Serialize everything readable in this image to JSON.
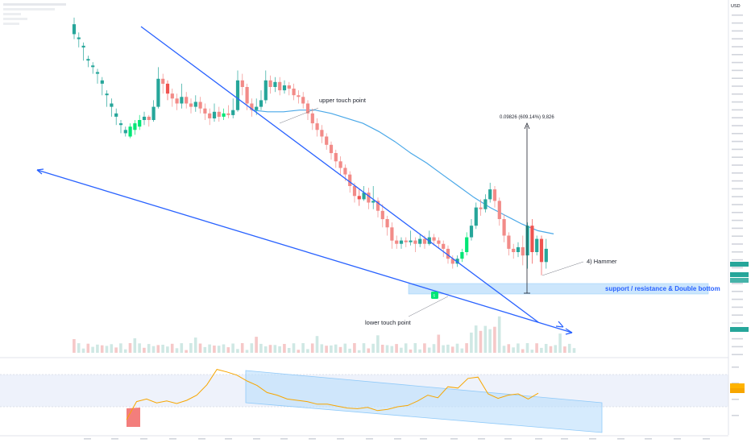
{
  "header": {
    "currency": "USD"
  },
  "annotations": {
    "upper_touch": "upper touch point",
    "lower_touch": "lower touch point",
    "hammer": "4) Hammer",
    "measure": "0.09826 (609.14%) 9,826",
    "support": "support / resistance & Double bottom",
    "marker": "5"
  },
  "colors": {
    "bull": "#26a69a",
    "bull_highlight": "#00e676",
    "bear": "#ef5350",
    "trendline": "#2962ff",
    "ma": "#4aa8e8",
    "rsi": "#f7a600",
    "support_zone": "#bbdefb"
  },
  "chart_data": {
    "type": "candlestick",
    "title": "",
    "series": [
      {
        "name": "",
        "ohlc": [
          [
            0.72,
            0.78,
            0.69,
            0.82
          ],
          [
            0.69,
            0.7,
            0.64,
            0.73
          ],
          [
            0.64,
            0.65,
            0.56,
            0.67
          ],
          [
            0.56,
            0.57,
            0.52,
            0.59
          ],
          [
            0.52,
            0.53,
            0.48,
            0.55
          ],
          [
            0.48,
            0.49,
            0.42,
            0.51
          ],
          [
            0.42,
            0.44,
            0.35,
            0.46
          ],
          [
            0.35,
            0.36,
            0.28,
            0.38
          ],
          [
            0.28,
            0.3,
            0.22,
            0.33
          ],
          [
            0.22,
            0.24,
            0.17,
            0.27
          ],
          [
            0.17,
            0.18,
            0.12,
            0.2
          ],
          [
            0.12,
            0.14,
            0.1,
            0.16
          ],
          [
            0.1,
            0.16,
            0.09,
            0.18
          ],
          [
            0.14,
            0.18,
            0.11,
            0.2
          ],
          [
            0.16,
            0.2,
            0.14,
            0.23
          ],
          [
            0.2,
            0.22,
            0.17,
            0.25
          ],
          [
            0.22,
            0.2,
            0.16,
            0.23
          ],
          [
            0.2,
            0.28,
            0.19,
            0.32
          ],
          [
            0.28,
            0.45,
            0.27,
            0.52
          ],
          [
            0.45,
            0.42,
            0.36,
            0.48
          ],
          [
            0.42,
            0.36,
            0.32,
            0.44
          ],
          [
            0.36,
            0.33,
            0.28,
            0.39
          ],
          [
            0.33,
            0.3,
            0.26,
            0.36
          ],
          [
            0.3,
            0.34,
            0.27,
            0.42
          ],
          [
            0.34,
            0.3,
            0.27,
            0.37
          ],
          [
            0.3,
            0.28,
            0.24,
            0.33
          ],
          [
            0.28,
            0.31,
            0.25,
            0.35
          ],
          [
            0.31,
            0.27,
            0.24,
            0.34
          ],
          [
            0.27,
            0.24,
            0.2,
            0.3
          ],
          [
            0.24,
            0.21,
            0.17,
            0.27
          ],
          [
            0.21,
            0.25,
            0.19,
            0.3
          ],
          [
            0.25,
            0.22,
            0.19,
            0.28
          ],
          [
            0.22,
            0.24,
            0.2,
            0.27
          ],
          [
            0.24,
            0.23,
            0.21,
            0.29
          ],
          [
            0.23,
            0.26,
            0.21,
            0.33
          ],
          [
            0.26,
            0.44,
            0.25,
            0.5
          ],
          [
            0.44,
            0.4,
            0.35,
            0.48
          ],
          [
            0.4,
            0.3,
            0.26,
            0.42
          ],
          [
            0.3,
            0.26,
            0.22,
            0.33
          ],
          [
            0.26,
            0.28,
            0.23,
            0.33
          ],
          [
            0.28,
            0.32,
            0.26,
            0.38
          ],
          [
            0.32,
            0.44,
            0.3,
            0.5
          ],
          [
            0.44,
            0.4,
            0.36,
            0.47
          ],
          [
            0.4,
            0.43,
            0.37,
            0.46
          ],
          [
            0.43,
            0.38,
            0.35,
            0.46
          ],
          [
            0.38,
            0.41,
            0.36,
            0.44
          ],
          [
            0.41,
            0.39,
            0.35,
            0.43
          ],
          [
            0.39,
            0.35,
            0.32,
            0.42
          ],
          [
            0.35,
            0.34,
            0.3,
            0.38
          ],
          [
            0.34,
            0.3,
            0.27,
            0.37
          ],
          [
            0.3,
            0.24,
            0.2,
            0.32
          ],
          [
            0.24,
            0.18,
            0.14,
            0.27
          ],
          [
            0.18,
            0.14,
            0.1,
            0.21
          ],
          [
            0.14,
            0.1,
            0.06,
            0.17
          ],
          [
            0.1,
            0.05,
            0.02,
            0.12
          ],
          [
            0.05,
            0.0,
            -0.04,
            0.07
          ],
          [
            0.0,
            -0.05,
            -0.09,
            0.02
          ],
          [
            -0.05,
            -0.09,
            -0.13,
            -0.02
          ],
          [
            -0.09,
            -0.13,
            -0.17,
            -0.07
          ],
          [
            -0.13,
            -0.2,
            -0.24,
            -0.11
          ],
          [
            -0.2,
            -0.26,
            -0.3,
            -0.18
          ],
          [
            -0.26,
            -0.28,
            -0.32,
            -0.22
          ],
          [
            -0.28,
            -0.24,
            -0.29,
            -0.2
          ],
          [
            -0.24,
            -0.3,
            -0.34,
            -0.21
          ],
          [
            -0.3,
            -0.29,
            -0.34,
            -0.2
          ],
          [
            -0.29,
            -0.35,
            -0.39,
            -0.27
          ],
          [
            -0.35,
            -0.4,
            -0.45,
            -0.31
          ],
          [
            -0.4,
            -0.45,
            -0.5,
            -0.38
          ],
          [
            -0.45,
            -0.53,
            -0.58,
            -0.42
          ],
          [
            -0.53,
            -0.55,
            -0.58,
            -0.5
          ],
          [
            -0.55,
            -0.53,
            -0.58,
            -0.51
          ],
          [
            -0.53,
            -0.54,
            -0.57,
            -0.51
          ],
          [
            -0.54,
            -0.53,
            -0.56,
            -0.47
          ],
          [
            -0.53,
            -0.55,
            -0.6,
            -0.51
          ],
          [
            -0.55,
            -0.52,
            -0.57,
            -0.49
          ],
          [
            -0.52,
            -0.55,
            -0.58,
            -0.5
          ],
          [
            -0.55,
            -0.51,
            -0.56,
            -0.47
          ],
          [
            -0.51,
            -0.53,
            -0.56,
            -0.49
          ],
          [
            -0.53,
            -0.55,
            -0.58,
            -0.51
          ],
          [
            -0.55,
            -0.58,
            -0.63,
            -0.53
          ],
          [
            -0.58,
            -0.64,
            -0.67,
            -0.56
          ],
          [
            -0.64,
            -0.67,
            -0.7,
            -0.62
          ],
          [
            -0.67,
            -0.64,
            -0.69,
            -0.62
          ],
          [
            -0.64,
            -0.6,
            -0.66,
            -0.58
          ],
          [
            -0.6,
            -0.51,
            -0.62,
            -0.48
          ],
          [
            -0.51,
            -0.44,
            -0.53,
            -0.4
          ],
          [
            -0.44,
            -0.33,
            -0.46,
            -0.3
          ],
          [
            -0.33,
            -0.34,
            -0.38,
            -0.28
          ],
          [
            -0.34,
            -0.28,
            -0.36,
            -0.25
          ],
          [
            -0.28,
            -0.22,
            -0.3,
            -0.18
          ],
          [
            -0.22,
            -0.29,
            -0.33,
            -0.2
          ],
          [
            -0.29,
            -0.4,
            -0.44,
            -0.27
          ],
          [
            -0.4,
            -0.5,
            -0.54,
            -0.37
          ],
          [
            -0.5,
            -0.58,
            -0.62,
            -0.48
          ],
          [
            -0.58,
            -0.6,
            -0.64,
            -0.55
          ],
          [
            -0.6,
            -0.57,
            -0.63,
            -0.54
          ],
          [
            -0.57,
            -0.62,
            -0.68,
            -0.5
          ],
          [
            -0.62,
            -0.44,
            -0.7,
            -0.42
          ],
          [
            -0.44,
            -0.6,
            -0.67,
            -0.4
          ],
          [
            -0.6,
            -0.52,
            -0.62,
            -0.5
          ],
          [
            -0.52,
            -0.66,
            -0.74,
            -0.5
          ],
          [
            -0.66,
            -0.58,
            -0.7,
            -0.52
          ]
        ]
      },
      {
        "name": "",
        "values": [
          0.26,
          0.25,
          0.25,
          0.26,
          0.26,
          0.24,
          0.21,
          0.18,
          0.13,
          0.07,
          0.0,
          -0.06,
          -0.13,
          -0.2,
          -0.27,
          -0.33,
          -0.38,
          -0.43,
          -0.47,
          -0.49
        ]
      },
      {
        "name": "",
        "values": [
          20,
          48,
          52,
          46,
          49,
          45,
          50,
          58,
          74,
          98,
          94,
          89,
          80,
          73,
          62,
          58,
          52,
          50,
          48,
          44,
          44,
          41,
          38,
          37,
          39,
          34,
          36,
          40,
          42,
          49,
          58,
          54,
          71,
          69,
          84,
          86,
          60,
          53,
          58,
          60,
          52,
          61
        ]
      }
    ],
    "ylim": [
      -0.9,
      1.0
    ],
    "grid": true
  }
}
